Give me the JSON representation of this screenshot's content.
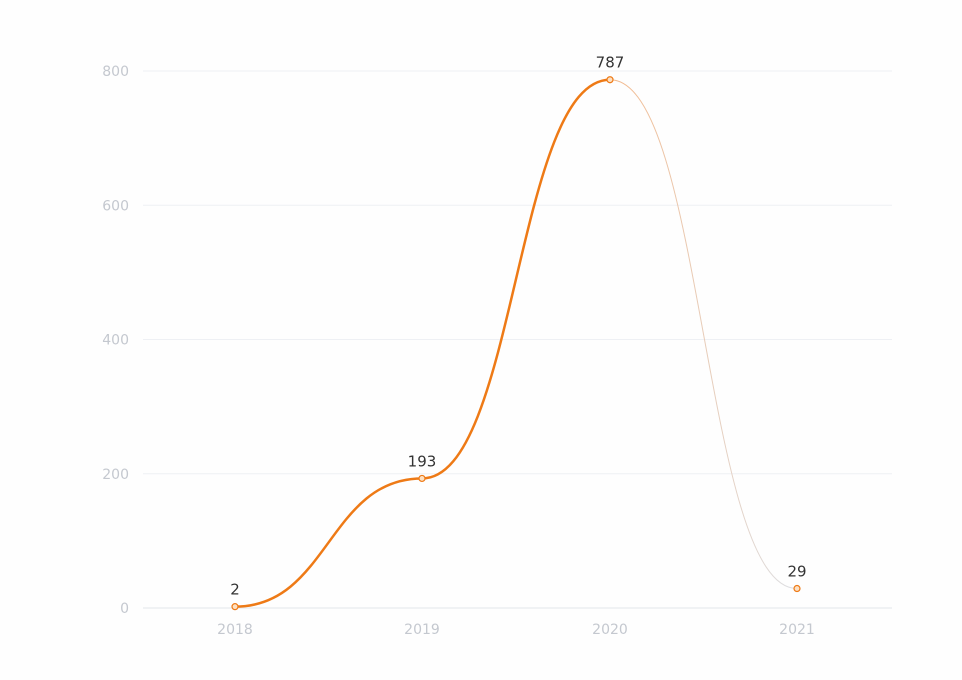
{
  "chart_data": {
    "type": "line",
    "title": "",
    "xlabel": "",
    "ylabel": "",
    "categories": [
      "2018",
      "2019",
      "2020",
      "2021"
    ],
    "series": [
      {
        "values": [
          2,
          193,
          787,
          29
        ]
      }
    ],
    "ylim": [
      0,
      800
    ],
    "yticks": [
      0,
      200,
      400,
      600,
      800
    ],
    "grid": true,
    "smooth": true,
    "data_labels": [
      "2",
      "193",
      "787",
      "29"
    ],
    "colors": {
      "line": "#ee7a16",
      "line_faded": "#f3b98c",
      "marker_fill": "#fde0c2",
      "grid": "#eef0f4",
      "tick_text": "#c4c8cf",
      "label_text": "#333333"
    }
  }
}
